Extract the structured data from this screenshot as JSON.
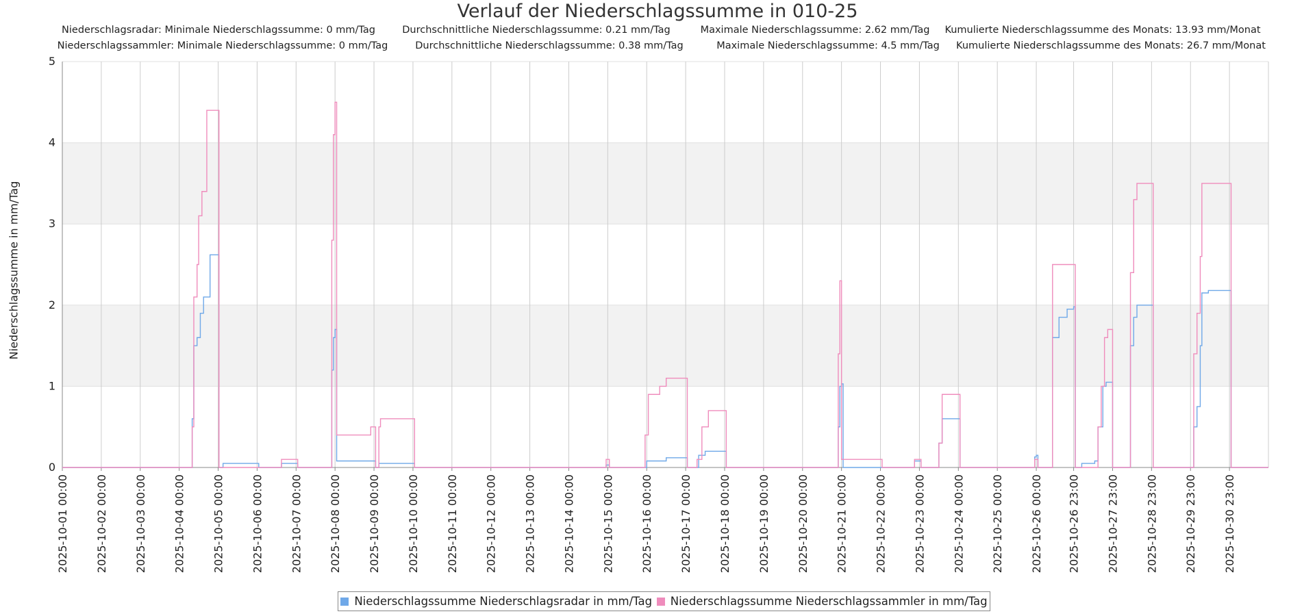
{
  "chart_data": {
    "type": "line",
    "title": "Verlauf der Niederschlagssumme in 010-25",
    "ylabel": "Niederschlagssumme in mm/Tag",
    "xlabel": "",
    "ylim": [
      0,
      5
    ],
    "yticks": [
      "0",
      "1",
      "2",
      "3",
      "4",
      "5"
    ],
    "xlim": [
      "2025-10-01 00:00",
      "2025-10-31 23:00"
    ],
    "xticks": [
      "2025-10-01 00:00",
      "2025-10-02 00:00",
      "2025-10-03 00:00",
      "2025-10-04 00:00",
      "2025-10-05 00:00",
      "2025-10-06 00:00",
      "2025-10-07 00:00",
      "2025-10-08 00:00",
      "2025-10-09 00:00",
      "2025-10-10 00:00",
      "2025-10-11 00:00",
      "2025-10-12 00:00",
      "2025-10-13 00:00",
      "2025-10-14 00:00",
      "2025-10-15 00:00",
      "2025-10-16 00:00",
      "2025-10-17 00:00",
      "2025-10-18 00:00",
      "2025-10-19 00:00",
      "2025-10-20 00:00",
      "2025-10-21 00:00",
      "2025-10-22 00:00",
      "2025-10-23 00:00",
      "2025-10-24 00:00",
      "2025-10-25 00:00",
      "2025-10-26 00:00",
      "2025-10-26 23:00",
      "2025-10-27 23:00",
      "2025-10-28 23:00",
      "2025-10-29 23:00",
      "2025-10-30 23:00"
    ],
    "grid": true,
    "band_fill": "#f2f2f2",
    "legend_position": "bottom-center",
    "stats": [
      {
        "label": "Niederschlagsradar",
        "texts": [
          "Niederschlagsradar: Minimale Niederschlagssumme: 0 mm/Tag",
          "Durchschnittliche Niederschlagssumme: 0.21 mm/Tag",
          "Maximale Niederschlagssumme: 2.62 mm/Tag",
          "Kumulierte Niederschlagssumme des Monats: 13.93 mm/Monat"
        ]
      },
      {
        "label": "Niederschlagssammler",
        "texts": [
          "Niederschlagssammler: Minimale Niederschlagssumme: 0 mm/Tag",
          "Durchschnittliche Niederschlagssumme: 0.38 mm/Tag",
          "Maximale Niederschlagssumme: 4.5 mm/Tag",
          "Kumulierte Niederschlagssumme des Monats: 26.7 mm/Monat"
        ]
      }
    ],
    "series": [
      {
        "name": "Niederschlagssumme Niederschlagsradar in mm/Tag",
        "color": "#6fa8e8",
        "points": [
          [
            "2025-10-01 00:00",
            0
          ],
          [
            "2025-10-04 07:00",
            0
          ],
          [
            "2025-10-04 08:00",
            0.6
          ],
          [
            "2025-10-04 09:00",
            1.5
          ],
          [
            "2025-10-04 11:00",
            1.6
          ],
          [
            "2025-10-04 13:00",
            1.9
          ],
          [
            "2025-10-04 15:00",
            2.1
          ],
          [
            "2025-10-04 19:00",
            2.62
          ],
          [
            "2025-10-05 00:00",
            2.62
          ],
          [
            "2025-10-05 00:30",
            0
          ],
          [
            "2025-10-05 03:00",
            0.05
          ],
          [
            "2025-10-06 00:00",
            0.05
          ],
          [
            "2025-10-06 01:00",
            0
          ],
          [
            "2025-10-06 14:00",
            0
          ],
          [
            "2025-10-06 15:00",
            0.05
          ],
          [
            "2025-10-07 00:00",
            0.05
          ],
          [
            "2025-10-07 01:00",
            0
          ],
          [
            "2025-10-07 21:00",
            0
          ],
          [
            "2025-10-07 22:00",
            1.2
          ],
          [
            "2025-10-07 23:00",
            1.6
          ],
          [
            "2025-10-08 00:00",
            1.7
          ],
          [
            "2025-10-08 01:00",
            0.08
          ],
          [
            "2025-10-09 00:00",
            0.08
          ],
          [
            "2025-10-09 01:00",
            0
          ],
          [
            "2025-10-09 03:00",
            0.05
          ],
          [
            "2025-10-10 00:00",
            0.05
          ],
          [
            "2025-10-10 01:00",
            0
          ],
          [
            "2025-10-14 22:00",
            0
          ],
          [
            "2025-10-14 23:00",
            0.03
          ],
          [
            "2025-10-15 00:00",
            0.03
          ],
          [
            "2025-10-15 01:00",
            0
          ],
          [
            "2025-10-15 22:00",
            0
          ],
          [
            "2025-10-16 00:00",
            0.08
          ],
          [
            "2025-10-16 12:00",
            0.12
          ],
          [
            "2025-10-17 00:00",
            0.12
          ],
          [
            "2025-10-17 01:00",
            0
          ],
          [
            "2025-10-17 06:00",
            0
          ],
          [
            "2025-10-17 08:00",
            0.15
          ],
          [
            "2025-10-17 12:00",
            0.2
          ],
          [
            "2025-10-18 00:00",
            0.2
          ],
          [
            "2025-10-18 01:00",
            0
          ],
          [
            "2025-10-20 20:00",
            0
          ],
          [
            "2025-10-20 22:00",
            0.5
          ],
          [
            "2025-10-20 23:00",
            1.0
          ],
          [
            "2025-10-21 00:00",
            1.03
          ],
          [
            "2025-10-21 01:00",
            0
          ],
          [
            "2025-10-22 20:00",
            0
          ],
          [
            "2025-10-22 21:00",
            0.08
          ],
          [
            "2025-10-23 00:00",
            0.08
          ],
          [
            "2025-10-23 01:00",
            0
          ],
          [
            "2025-10-23 10:00",
            0
          ],
          [
            "2025-10-23 12:00",
            0.3
          ],
          [
            "2025-10-23 14:00",
            0.6
          ],
          [
            "2025-10-24 00:00",
            0.6
          ],
          [
            "2025-10-24 01:00",
            0
          ],
          [
            "2025-10-25 22:00",
            0
          ],
          [
            "2025-10-25 23:00",
            0.13
          ],
          [
            "2025-10-26 00:00",
            0.15
          ],
          [
            "2025-10-26 01:00",
            0
          ],
          [
            "2025-10-26 09:00",
            0
          ],
          [
            "2025-10-26 10:00",
            1.6
          ],
          [
            "2025-10-26 14:00",
            1.85
          ],
          [
            "2025-10-26 19:00",
            1.95
          ],
          [
            "2025-10-26 23:00",
            1.98
          ],
          [
            "2025-10-27 00:00",
            0
          ],
          [
            "2025-10-27 04:00",
            0.05
          ],
          [
            "2025-10-27 12:00",
            0.08
          ],
          [
            "2025-10-27 14:00",
            0.5
          ],
          [
            "2025-10-27 17:00",
            1.0
          ],
          [
            "2025-10-27 19:00",
            1.05
          ],
          [
            "2025-10-27 22:00",
            1.05
          ],
          [
            "2025-10-27 23:00",
            0
          ],
          [
            "2025-10-28 09:00",
            0
          ],
          [
            "2025-10-28 10:00",
            1.5
          ],
          [
            "2025-10-28 12:00",
            1.85
          ],
          [
            "2025-10-28 14:00",
            2.0
          ],
          [
            "2025-10-28 23:00",
            2.0
          ],
          [
            "2025-10-29 00:00",
            0
          ],
          [
            "2025-10-29 23:00",
            0
          ],
          [
            "2025-10-30 01:00",
            0.5
          ],
          [
            "2025-10-30 03:00",
            0.75
          ],
          [
            "2025-10-30 05:00",
            1.5
          ],
          [
            "2025-10-30 06:00",
            2.15
          ],
          [
            "2025-10-30 10:00",
            2.18
          ],
          [
            "2025-10-30 23:00",
            2.18
          ],
          [
            "2025-10-31 00:00",
            0
          ],
          [
            "2025-10-31 23:00",
            0
          ]
        ]
      },
      {
        "name": "Niederschlagssumme Niederschlagssammler in mm/Tag",
        "color": "#ef8cbc",
        "points": [
          [
            "2025-10-01 00:00",
            0
          ],
          [
            "2025-10-04 07:00",
            0
          ],
          [
            "2025-10-04 08:00",
            0.5
          ],
          [
            "2025-10-04 09:00",
            2.1
          ],
          [
            "2025-10-04 11:00",
            2.5
          ],
          [
            "2025-10-04 12:00",
            3.1
          ],
          [
            "2025-10-04 14:00",
            3.4
          ],
          [
            "2025-10-04 17:00",
            4.4
          ],
          [
            "2025-10-05 00:00",
            4.4
          ],
          [
            "2025-10-05 00:30",
            0
          ],
          [
            "2025-10-06 14:00",
            0
          ],
          [
            "2025-10-06 15:00",
            0.1
          ],
          [
            "2025-10-07 00:00",
            0.1
          ],
          [
            "2025-10-07 01:00",
            0
          ],
          [
            "2025-10-07 21:00",
            0
          ],
          [
            "2025-10-07 22:00",
            2.8
          ],
          [
            "2025-10-07 23:00",
            4.1
          ],
          [
            "2025-10-08 00:00",
            4.5
          ],
          [
            "2025-10-08 01:00",
            0.4
          ],
          [
            "2025-10-08 21:00",
            0.4
          ],
          [
            "2025-10-08 22:00",
            0.5
          ],
          [
            "2025-10-09 00:00",
            0.5
          ],
          [
            "2025-10-09 01:00",
            0
          ],
          [
            "2025-10-09 03:00",
            0.5
          ],
          [
            "2025-10-09 04:00",
            0.6
          ],
          [
            "2025-10-10 00:00",
            0.6
          ],
          [
            "2025-10-10 01:00",
            0
          ],
          [
            "2025-10-14 22:00",
            0
          ],
          [
            "2025-10-14 23:00",
            0.1
          ],
          [
            "2025-10-15 00:00",
            0.1
          ],
          [
            "2025-10-15 01:00",
            0
          ],
          [
            "2025-10-15 22:00",
            0
          ],
          [
            "2025-10-15 23:00",
            0.4
          ],
          [
            "2025-10-16 01:00",
            0.9
          ],
          [
            "2025-10-16 08:00",
            1.0
          ],
          [
            "2025-10-16 12:00",
            1.1
          ],
          [
            "2025-10-17 00:00",
            1.1
          ],
          [
            "2025-10-17 01:00",
            0
          ],
          [
            "2025-10-17 06:00",
            0
          ],
          [
            "2025-10-17 07:00",
            0.1
          ],
          [
            "2025-10-17 10:00",
            0.5
          ],
          [
            "2025-10-17 14:00",
            0.7
          ],
          [
            "2025-10-18 00:00",
            0.7
          ],
          [
            "2025-10-18 01:00",
            0
          ],
          [
            "2025-10-20 20:00",
            0
          ],
          [
            "2025-10-20 22:00",
            1.4
          ],
          [
            "2025-10-20 23:00",
            2.3
          ],
          [
            "2025-10-21 00:00",
            0.1
          ],
          [
            "2025-10-22 00:00",
            0.1
          ],
          [
            "2025-10-22 01:00",
            0
          ],
          [
            "2025-10-22 20:00",
            0
          ],
          [
            "2025-10-22 21:00",
            0.1
          ],
          [
            "2025-10-23 00:00",
            0.1
          ],
          [
            "2025-10-23 01:00",
            0
          ],
          [
            "2025-10-23 10:00",
            0
          ],
          [
            "2025-10-23 12:00",
            0.3
          ],
          [
            "2025-10-23 14:00",
            0.9
          ],
          [
            "2025-10-24 00:00",
            0.9
          ],
          [
            "2025-10-24 01:00",
            0
          ],
          [
            "2025-10-25 22:00",
            0
          ],
          [
            "2025-10-25 23:00",
            0.1
          ],
          [
            "2025-10-26 00:00",
            0.1
          ],
          [
            "2025-10-26 01:00",
            0
          ],
          [
            "2025-10-26 09:00",
            0
          ],
          [
            "2025-10-26 10:00",
            2.5
          ],
          [
            "2025-10-26 23:00",
            2.5
          ],
          [
            "2025-10-27 00:00",
            0
          ],
          [
            "2025-10-27 12:00",
            0
          ],
          [
            "2025-10-27 14:00",
            0.5
          ],
          [
            "2025-10-27 16:00",
            1.0
          ],
          [
            "2025-10-27 18:00",
            1.6
          ],
          [
            "2025-10-27 20:00",
            1.7
          ],
          [
            "2025-10-27 22:00",
            1.7
          ],
          [
            "2025-10-27 23:00",
            0
          ],
          [
            "2025-10-28 09:00",
            0
          ],
          [
            "2025-10-28 10:00",
            2.4
          ],
          [
            "2025-10-28 12:00",
            3.3
          ],
          [
            "2025-10-28 14:00",
            3.5
          ],
          [
            "2025-10-28 23:00",
            3.5
          ],
          [
            "2025-10-29 00:00",
            0
          ],
          [
            "2025-10-29 23:00",
            0
          ],
          [
            "2025-10-30 01:00",
            1.4
          ],
          [
            "2025-10-30 03:00",
            1.9
          ],
          [
            "2025-10-30 05:00",
            2.6
          ],
          [
            "2025-10-30 06:00",
            3.5
          ],
          [
            "2025-10-30 23:00",
            3.5
          ],
          [
            "2025-10-31 00:00",
            0
          ],
          [
            "2025-10-31 23:00",
            0
          ]
        ]
      }
    ]
  }
}
